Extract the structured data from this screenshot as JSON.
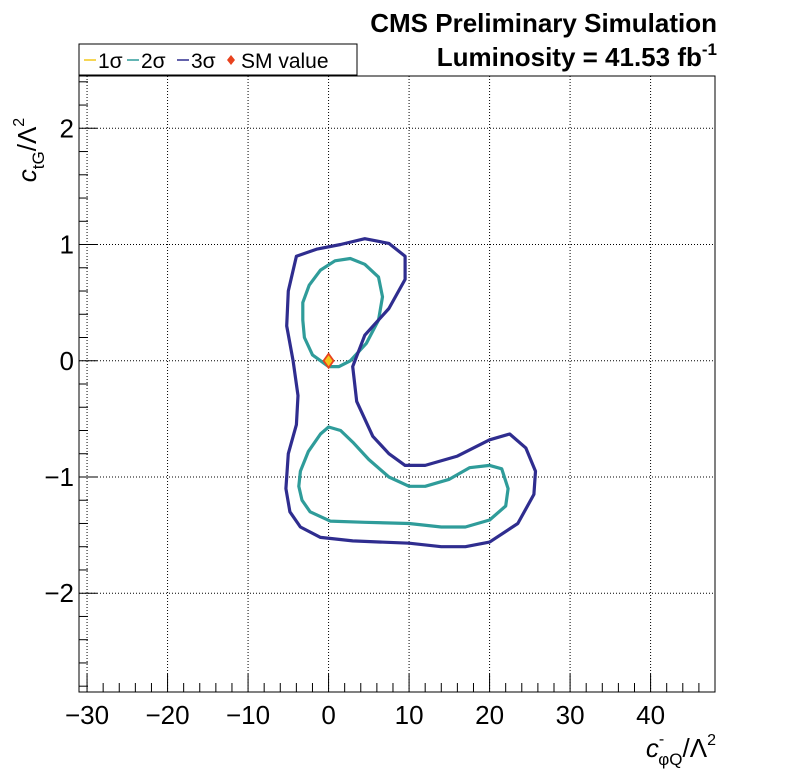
{
  "header": {
    "title_line1": "CMS Preliminary Simulation",
    "title_line2_main": "Luminosity = 41.53 fb",
    "title_line2_sup": "-1"
  },
  "legend": {
    "items": [
      {
        "label": "1σ",
        "color": "#f2c81c",
        "marker": "line"
      },
      {
        "label": "2σ",
        "color": "#2f9c9a",
        "marker": "line"
      },
      {
        "label": "3σ",
        "color": "#2f2d8f",
        "marker": "line"
      },
      {
        "label": "SM value",
        "color": "#e8421e",
        "marker": "diamond"
      }
    ]
  },
  "axes": {
    "xlabel": {
      "main": "c",
      "sup": "-",
      "sub": "φQ",
      "rest": "/Λ",
      "rest_sup": "2"
    },
    "ylabel": {
      "main": "c",
      "sub": "tG",
      "rest": "/Λ",
      "rest_sup": "2"
    }
  },
  "chart_data": {
    "type": "contour",
    "title": "CMS Preliminary Simulation",
    "subtitle": "Luminosity = 41.53 fb-1",
    "xlim": [
      -31,
      48
    ],
    "ylim": [
      -2.85,
      2.45
    ],
    "grid": true,
    "legend_position": "top-left",
    "x_ticks": [
      -30,
      -20,
      -10,
      0,
      10,
      20,
      30,
      40
    ],
    "x_tick_labels": [
      "−30",
      "−20",
      "−10",
      "0",
      "10",
      "20",
      "30",
      "40"
    ],
    "y_ticks": [
      -2,
      -1,
      0,
      1,
      2
    ],
    "y_tick_labels": [
      "−2",
      "−1",
      "0",
      "1",
      "2"
    ],
    "sm_value": {
      "x": 0,
      "y": 0,
      "color": "#e8421e",
      "fill": "#f2c81c"
    },
    "series": [
      {
        "name": "1σ",
        "color": "#f2c81c",
        "contours": []
      },
      {
        "name": "2σ",
        "color": "#2f9c9a",
        "contours": [
          [
            [
              0,
              -0.05
            ],
            [
              -2,
              0.05
            ],
            [
              -3,
              0.2
            ],
            [
              -3.2,
              0.35
            ],
            [
              -3.2,
              0.5
            ],
            [
              -2.4,
              0.65
            ],
            [
              -1,
              0.78
            ],
            [
              0.8,
              0.86
            ],
            [
              2.7,
              0.88
            ],
            [
              4.5,
              0.83
            ],
            [
              6.2,
              0.72
            ],
            [
              6.7,
              0.55
            ],
            [
              6.2,
              0.35
            ],
            [
              4.7,
              0.15
            ],
            [
              2.7,
              0.0
            ],
            [
              1.3,
              -0.05
            ],
            [
              0,
              -0.05
            ]
          ],
          [
            [
              0,
              -0.57
            ],
            [
              -1,
              -0.63
            ],
            [
              -2.5,
              -0.78
            ],
            [
              -3.5,
              -0.95
            ],
            [
              -3.7,
              -1.08
            ],
            [
              -3.3,
              -1.2
            ],
            [
              -2.3,
              -1.3
            ],
            [
              0.2,
              -1.38
            ],
            [
              4.5,
              -1.39
            ],
            [
              10,
              -1.4
            ],
            [
              14,
              -1.43
            ],
            [
              17,
              -1.43
            ],
            [
              20,
              -1.37
            ],
            [
              22,
              -1.25
            ],
            [
              22.3,
              -1.1
            ],
            [
              21.5,
              -0.93
            ],
            [
              20,
              -0.9
            ],
            [
              17.5,
              -0.92
            ],
            [
              15,
              -1.02
            ],
            [
              12,
              -1.08
            ],
            [
              10,
              -1.08
            ],
            [
              7.5,
              -1.0
            ],
            [
              5,
              -0.85
            ],
            [
              3,
              -0.7
            ],
            [
              1.5,
              -0.6
            ],
            [
              0,
              -0.57
            ]
          ]
        ]
      },
      {
        "name": "3σ",
        "color": "#2f2d8f",
        "contours": [
          [
            [
              -4,
              0.9
            ],
            [
              -5,
              0.6
            ],
            [
              -5.2,
              0.3
            ],
            [
              -4.4,
              0.0
            ],
            [
              -3.8,
              -0.3
            ],
            [
              -4.0,
              -0.55
            ],
            [
              -5.0,
              -0.8
            ],
            [
              -5.3,
              -1.1
            ],
            [
              -4.8,
              -1.3
            ],
            [
              -3.5,
              -1.43
            ],
            [
              -1,
              -1.52
            ],
            [
              3,
              -1.55
            ],
            [
              10,
              -1.57
            ],
            [
              14,
              -1.6
            ],
            [
              17,
              -1.6
            ],
            [
              20,
              -1.56
            ],
            [
              23.5,
              -1.4
            ],
            [
              25.5,
              -1.15
            ],
            [
              25.7,
              -0.95
            ],
            [
              24.5,
              -0.75
            ],
            [
              22.5,
              -0.63
            ],
            [
              20,
              -0.68
            ],
            [
              16,
              -0.82
            ],
            [
              12,
              -0.9
            ],
            [
              9.5,
              -0.9
            ],
            [
              7.5,
              -0.8
            ],
            [
              5.5,
              -0.65
            ],
            [
              3.5,
              -0.35
            ],
            [
              3.0,
              -0.05
            ],
            [
              4.5,
              0.22
            ],
            [
              7.5,
              0.45
            ],
            [
              9.5,
              0.7
            ],
            [
              9.5,
              0.9
            ],
            [
              7.5,
              1.01
            ],
            [
              4.5,
              1.05
            ],
            [
              1.5,
              1.0
            ],
            [
              -1.5,
              0.96
            ],
            [
              -4,
              0.9
            ]
          ]
        ]
      }
    ]
  }
}
